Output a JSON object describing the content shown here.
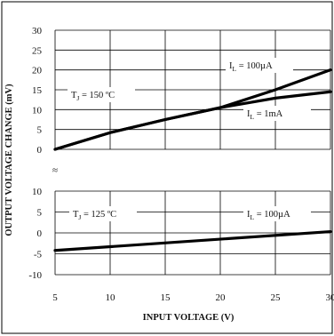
{
  "chart_data": [
    {
      "type": "line",
      "panel": "upper",
      "xlabel": "INPUT VOLTAGE (V)",
      "ylabel": "OUTPUT VOLTAGE CHANGE (mV)",
      "x_ticks": [
        5,
        10,
        15,
        20,
        25,
        30
      ],
      "y_ticks": [
        0,
        5,
        10,
        15,
        20,
        25,
        30
      ],
      "xlim": [
        5,
        30
      ],
      "ylim": [
        0,
        30
      ],
      "grid": true,
      "annotation": {
        "main": "T",
        "sub": "J",
        "rest": " = 150 ºC"
      },
      "series": [
        {
          "name_main": "I",
          "name_sub": "L",
          "name_rest": " = 100µA",
          "x": [
            5,
            10,
            15,
            20,
            25,
            30
          ],
          "y": [
            0,
            4.2,
            7.5,
            10.5,
            15.0,
            20.0
          ]
        },
        {
          "name_main": "I",
          "name_sub": "L",
          "name_rest": " = 1mA",
          "x": [
            5,
            10,
            15,
            20,
            25,
            30
          ],
          "y": [
            0,
            4.2,
            7.5,
            10.5,
            12.9,
            14.5
          ]
        }
      ]
    },
    {
      "type": "line",
      "panel": "lower",
      "xlabel": "INPUT VOLTAGE (V)",
      "ylabel": "OUTPUT VOLTAGE CHANGE (mV)",
      "x_ticks": [
        5,
        10,
        15,
        20,
        25,
        30
      ],
      "y_ticks": [
        -10,
        -5,
        0,
        5,
        10
      ],
      "xlim": [
        5,
        30
      ],
      "ylim": [
        -10,
        10
      ],
      "grid": true,
      "annotation": {
        "main": "T",
        "sub": "J",
        "rest": " = 125 ºC"
      },
      "series": [
        {
          "name_main": "I",
          "name_sub": "L",
          "name_rest": " = 100µA",
          "x": [
            5,
            30
          ],
          "y": [
            -4.2,
            0.3
          ]
        }
      ]
    }
  ],
  "axis_break_symbol": "≈"
}
